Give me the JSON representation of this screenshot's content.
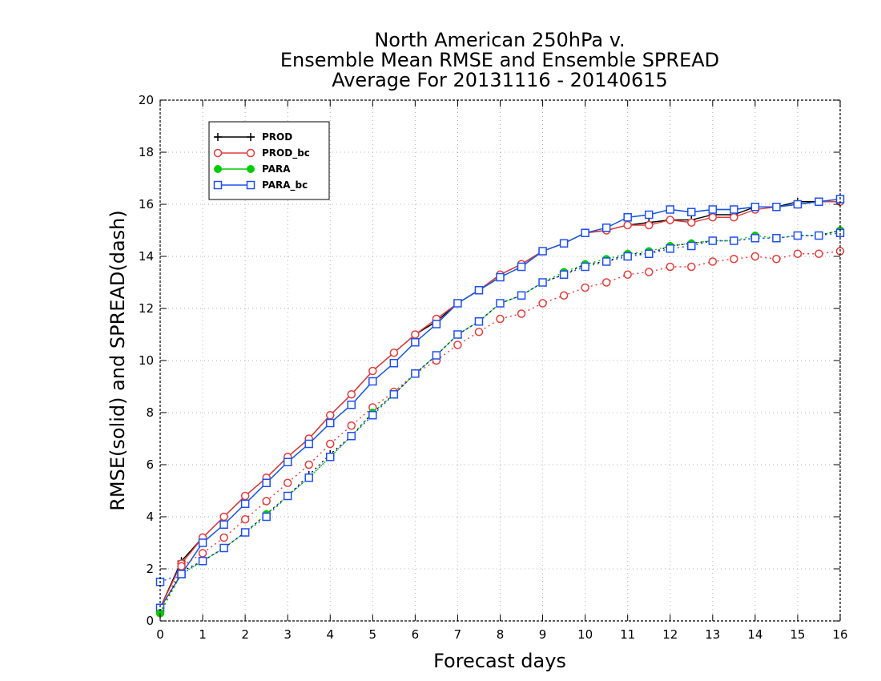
{
  "chart_data": {
    "type": "line",
    "title": [
      "North American 250hPa v.",
      "Ensemble Mean RMSE and Ensemble SPREAD",
      "Average For 20131116 - 20140615"
    ],
    "xlabel": "Forecast days",
    "ylabel": "RMSE(solid) and SPREAD(dash)",
    "xlim": [
      0,
      16
    ],
    "ylim": [
      0,
      20
    ],
    "xticks": [
      "0",
      "1",
      "2",
      "3",
      "4",
      "5",
      "6",
      "7",
      "8",
      "9",
      "10",
      "11",
      "12",
      "13",
      "14",
      "15",
      "16"
    ],
    "yticks": [
      "0",
      "2",
      "4",
      "6",
      "8",
      "10",
      "12",
      "14",
      "16",
      "18",
      "20"
    ],
    "grid": true,
    "legend_position": "top-left",
    "x": [
      0,
      0.5,
      1,
      1.5,
      2,
      2.5,
      3,
      3.5,
      4,
      4.5,
      5,
      5.5,
      6,
      6.5,
      7,
      7.5,
      8,
      8.5,
      9,
      9.5,
      10,
      10.5,
      11,
      11.5,
      12,
      12.5,
      13,
      13.5,
      14,
      14.5,
      15,
      15.5,
      16
    ],
    "series": [
      {
        "name": "PROD",
        "color": "#000000",
        "marker": "plus",
        "style": "solid",
        "values": [
          0.5,
          2.3,
          3.2,
          4.0,
          4.8,
          5.5,
          6.3,
          7.0,
          7.9,
          8.7,
          9.6,
          10.3,
          11.0,
          11.5,
          12.2,
          12.7,
          13.3,
          13.7,
          14.2,
          14.5,
          14.9,
          15.0,
          15.2,
          15.3,
          15.4,
          15.4,
          15.6,
          15.6,
          15.9,
          15.9,
          16.1,
          16.1,
          16.1
        ]
      },
      {
        "name": "PROD_bc",
        "color": "#e23c3c",
        "marker": "circle",
        "style": "solid",
        "values": [
          0.5,
          2.2,
          3.2,
          4.0,
          4.8,
          5.5,
          6.3,
          7.0,
          7.9,
          8.7,
          9.6,
          10.3,
          11.0,
          11.6,
          12.2,
          12.7,
          13.3,
          13.7,
          14.2,
          14.5,
          14.9,
          15.0,
          15.2,
          15.2,
          15.4,
          15.3,
          15.5,
          15.5,
          15.8,
          15.9,
          16.0,
          16.1,
          16.1
        ]
      },
      {
        "name": "PARA",
        "color": "#00cc00",
        "marker": "dot",
        "style": "solid",
        "values": [
          0.5,
          1.8,
          3.0,
          3.7,
          4.5,
          5.3,
          6.1,
          6.8,
          7.6,
          8.3,
          9.2,
          9.9,
          10.7,
          11.4,
          12.2,
          12.7,
          13.2,
          13.6,
          14.2,
          14.5,
          14.9,
          15.1,
          15.5,
          15.6,
          15.8,
          15.7,
          15.8,
          15.8,
          15.9,
          15.9,
          16.0,
          16.1,
          16.2
        ]
      },
      {
        "name": "PARA_bc",
        "color": "#1f4ff0",
        "marker": "square",
        "style": "solid",
        "values": [
          0.5,
          1.8,
          3.0,
          3.7,
          4.5,
          5.3,
          6.1,
          6.8,
          7.6,
          8.3,
          9.2,
          9.9,
          10.7,
          11.4,
          12.2,
          12.7,
          13.2,
          13.6,
          14.2,
          14.5,
          14.9,
          15.1,
          15.5,
          15.6,
          15.8,
          15.7,
          15.8,
          15.8,
          15.9,
          15.9,
          16.0,
          16.1,
          16.2
        ]
      },
      {
        "name": "PROD",
        "color": "#000000",
        "marker": "plus",
        "style": "dotted",
        "values": [
          0.3,
          1.9,
          2.3,
          2.8,
          3.4,
          4.1,
          4.8,
          5.6,
          6.4,
          7.1,
          8.0,
          8.7,
          9.5,
          10.2,
          11.0,
          11.5,
          12.2,
          12.5,
          13.0,
          13.3,
          13.7,
          13.8,
          14.1,
          14.1,
          14.4,
          14.5,
          14.6,
          14.6,
          14.7,
          14.7,
          14.8,
          14.8,
          15.0
        ]
      },
      {
        "name": "PROD_bc",
        "color": "#e23c3c",
        "marker": "circle",
        "style": "dotted",
        "values": [
          0.3,
          2.1,
          2.6,
          3.2,
          3.9,
          4.6,
          5.3,
          6.0,
          6.8,
          7.5,
          8.2,
          8.8,
          9.5,
          10.0,
          10.6,
          11.1,
          11.6,
          11.8,
          12.2,
          12.5,
          12.8,
          13.0,
          13.3,
          13.4,
          13.6,
          13.6,
          13.8,
          13.9,
          14.0,
          13.9,
          14.1,
          14.1,
          14.2
        ]
      },
      {
        "name": "PARA",
        "color": "#00cc00",
        "marker": "dot",
        "style": "dotted",
        "values": [
          0.3,
          1.8,
          2.3,
          2.8,
          3.4,
          4.1,
          4.8,
          5.5,
          6.3,
          7.1,
          8.0,
          8.7,
          9.5,
          10.2,
          11.0,
          11.5,
          12.2,
          12.5,
          13.0,
          13.4,
          13.7,
          13.9,
          14.1,
          14.2,
          14.4,
          14.5,
          14.6,
          14.6,
          14.8,
          14.7,
          14.8,
          14.8,
          15.0
        ]
      },
      {
        "name": "PARA_bc",
        "color": "#1f4ff0",
        "marker": "square",
        "style": "dotted",
        "values": [
          1.5,
          1.8,
          2.3,
          2.8,
          3.4,
          4.0,
          4.8,
          5.5,
          6.3,
          7.1,
          7.9,
          8.7,
          9.5,
          10.2,
          11.0,
          11.5,
          12.2,
          12.5,
          13.0,
          13.3,
          13.6,
          13.8,
          14.0,
          14.1,
          14.3,
          14.4,
          14.6,
          14.6,
          14.7,
          14.7,
          14.8,
          14.8,
          14.9
        ]
      }
    ],
    "legend": [
      "PROD",
      "PROD_bc",
      "PARA",
      "PARA_bc"
    ]
  }
}
